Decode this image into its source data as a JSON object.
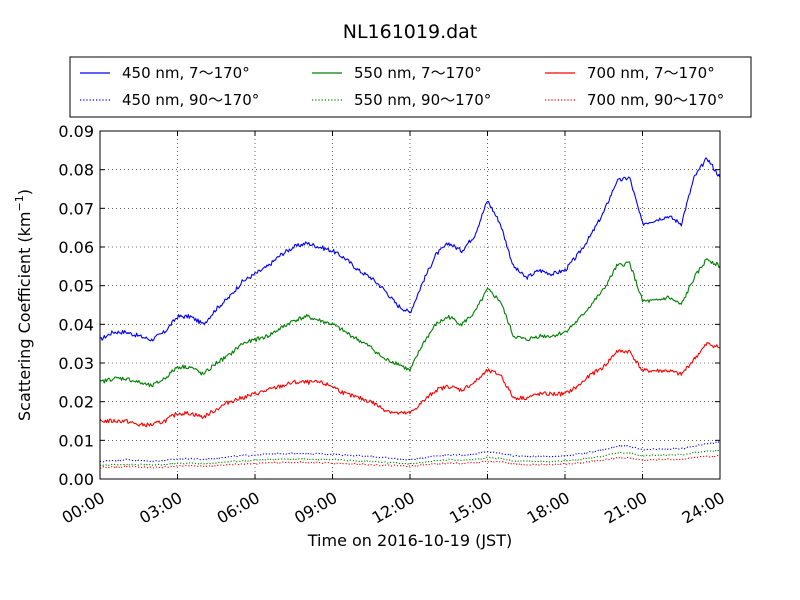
{
  "chart_data": {
    "type": "line",
    "title": "NL161019.dat",
    "xlabel": "Time on 2016-10-19 (JST)",
    "ylabel": "Scattering Coefficient (km",
    "ylabel_superscript": "−1",
    "ylabel_close": ")",
    "xlim": [
      "00:00",
      "24:00"
    ],
    "ylim": [
      0.0,
      0.09
    ],
    "xticks": [
      "00:00",
      "03:00",
      "06:00",
      "09:00",
      "12:00",
      "15:00",
      "18:00",
      "21:00",
      "24:00"
    ],
    "yticks": [
      "0.00",
      "0.01",
      "0.02",
      "0.03",
      "0.04",
      "0.05",
      "0.06",
      "0.07",
      "0.08",
      "0.09"
    ],
    "grid": true,
    "legend_position": "top",
    "x_hours": [
      0,
      0.5,
      1,
      1.5,
      2,
      2.5,
      3,
      3.5,
      4,
      4.5,
      5,
      5.5,
      6,
      6.5,
      7,
      7.5,
      8,
      8.5,
      9,
      9.5,
      10,
      10.5,
      11,
      11.5,
      12,
      12.5,
      13,
      13.5,
      14,
      14.5,
      15,
      15.5,
      16,
      16.5,
      17,
      17.5,
      18,
      18.5,
      19,
      19.5,
      20,
      20.5,
      21,
      21.5,
      22,
      22.5,
      23,
      23.5,
      24
    ],
    "series": [
      {
        "name": "450 nm, 7～170°",
        "color": "#0000ff",
        "style": "solid",
        "values": [
          0.036,
          0.038,
          0.038,
          0.037,
          0.036,
          0.038,
          0.042,
          0.042,
          0.04,
          0.044,
          0.047,
          0.051,
          0.053,
          0.055,
          0.058,
          0.06,
          0.061,
          0.06,
          0.059,
          0.057,
          0.054,
          0.052,
          0.049,
          0.045,
          0.043,
          0.051,
          0.058,
          0.061,
          0.059,
          0.063,
          0.072,
          0.066,
          0.055,
          0.052,
          0.054,
          0.053,
          0.054,
          0.058,
          0.063,
          0.069,
          0.077,
          0.078,
          0.066,
          0.067,
          0.068,
          0.066,
          0.078,
          0.083,
          0.078
        ]
      },
      {
        "name": "450 nm, 90～170°",
        "color": "#0000ff",
        "style": "dotted",
        "values": [
          0.0045,
          0.0048,
          0.005,
          0.0048,
          0.0046,
          0.0048,
          0.0052,
          0.0053,
          0.005,
          0.0054,
          0.0058,
          0.006,
          0.0062,
          0.0064,
          0.0066,
          0.0066,
          0.0066,
          0.0065,
          0.0064,
          0.0062,
          0.006,
          0.0058,
          0.0055,
          0.0052,
          0.005,
          0.0055,
          0.006,
          0.0063,
          0.0062,
          0.0065,
          0.007,
          0.0067,
          0.006,
          0.0058,
          0.0059,
          0.0058,
          0.006,
          0.0064,
          0.007,
          0.0075,
          0.0085,
          0.0085,
          0.0075,
          0.0077,
          0.0078,
          0.0078,
          0.0085,
          0.0092,
          0.0095
        ]
      },
      {
        "name": "550 nm, 7～170°",
        "color": "#008000",
        "style": "solid",
        "values": [
          0.025,
          0.026,
          0.026,
          0.025,
          0.024,
          0.026,
          0.029,
          0.029,
          0.027,
          0.03,
          0.032,
          0.035,
          0.036,
          0.037,
          0.039,
          0.041,
          0.042,
          0.041,
          0.04,
          0.038,
          0.036,
          0.034,
          0.031,
          0.03,
          0.028,
          0.035,
          0.04,
          0.042,
          0.04,
          0.043,
          0.049,
          0.046,
          0.037,
          0.036,
          0.037,
          0.037,
          0.038,
          0.041,
          0.045,
          0.049,
          0.055,
          0.056,
          0.046,
          0.046,
          0.047,
          0.045,
          0.052,
          0.057,
          0.055
        ]
      },
      {
        "name": "550 nm, 90～170°",
        "color": "#008000",
        "style": "dotted",
        "values": [
          0.0035,
          0.0037,
          0.0038,
          0.0037,
          0.0036,
          0.0037,
          0.004,
          0.0041,
          0.0039,
          0.0042,
          0.0045,
          0.0047,
          0.0049,
          0.005,
          0.0052,
          0.0052,
          0.0052,
          0.0051,
          0.005,
          0.0049,
          0.0047,
          0.0045,
          0.0043,
          0.0041,
          0.0039,
          0.0043,
          0.0047,
          0.005,
          0.0049,
          0.0051,
          0.0055,
          0.0053,
          0.0047,
          0.0045,
          0.0046,
          0.0045,
          0.0047,
          0.005,
          0.0055,
          0.006,
          0.0068,
          0.0068,
          0.006,
          0.0062,
          0.0063,
          0.0063,
          0.0068,
          0.0072,
          0.0075
        ]
      },
      {
        "name": "700 nm, 7～170°",
        "color": "#ff0000",
        "style": "solid",
        "values": [
          0.015,
          0.015,
          0.015,
          0.014,
          0.014,
          0.015,
          0.017,
          0.017,
          0.016,
          0.018,
          0.02,
          0.021,
          0.022,
          0.023,
          0.024,
          0.025,
          0.025,
          0.025,
          0.024,
          0.022,
          0.021,
          0.02,
          0.018,
          0.017,
          0.017,
          0.02,
          0.023,
          0.024,
          0.023,
          0.025,
          0.028,
          0.027,
          0.021,
          0.021,
          0.022,
          0.022,
          0.022,
          0.024,
          0.027,
          0.029,
          0.033,
          0.033,
          0.028,
          0.028,
          0.028,
          0.027,
          0.031,
          0.035,
          0.034
        ]
      },
      {
        "name": "700 nm, 90～170°",
        "color": "#ff0000",
        "style": "dotted",
        "values": [
          0.003,
          0.0031,
          0.0032,
          0.0031,
          0.003,
          0.0031,
          0.0034,
          0.0035,
          0.0033,
          0.0035,
          0.0037,
          0.0039,
          0.004,
          0.0042,
          0.0043,
          0.0043,
          0.0043,
          0.0042,
          0.0041,
          0.004,
          0.0039,
          0.0037,
          0.0035,
          0.0034,
          0.0033,
          0.0036,
          0.0039,
          0.0041,
          0.004,
          0.0042,
          0.0046,
          0.0044,
          0.0039,
          0.0037,
          0.0038,
          0.0037,
          0.0039,
          0.0041,
          0.0045,
          0.0049,
          0.0055,
          0.0055,
          0.0049,
          0.005,
          0.0051,
          0.0051,
          0.0055,
          0.0058,
          0.006
        ]
      }
    ]
  }
}
